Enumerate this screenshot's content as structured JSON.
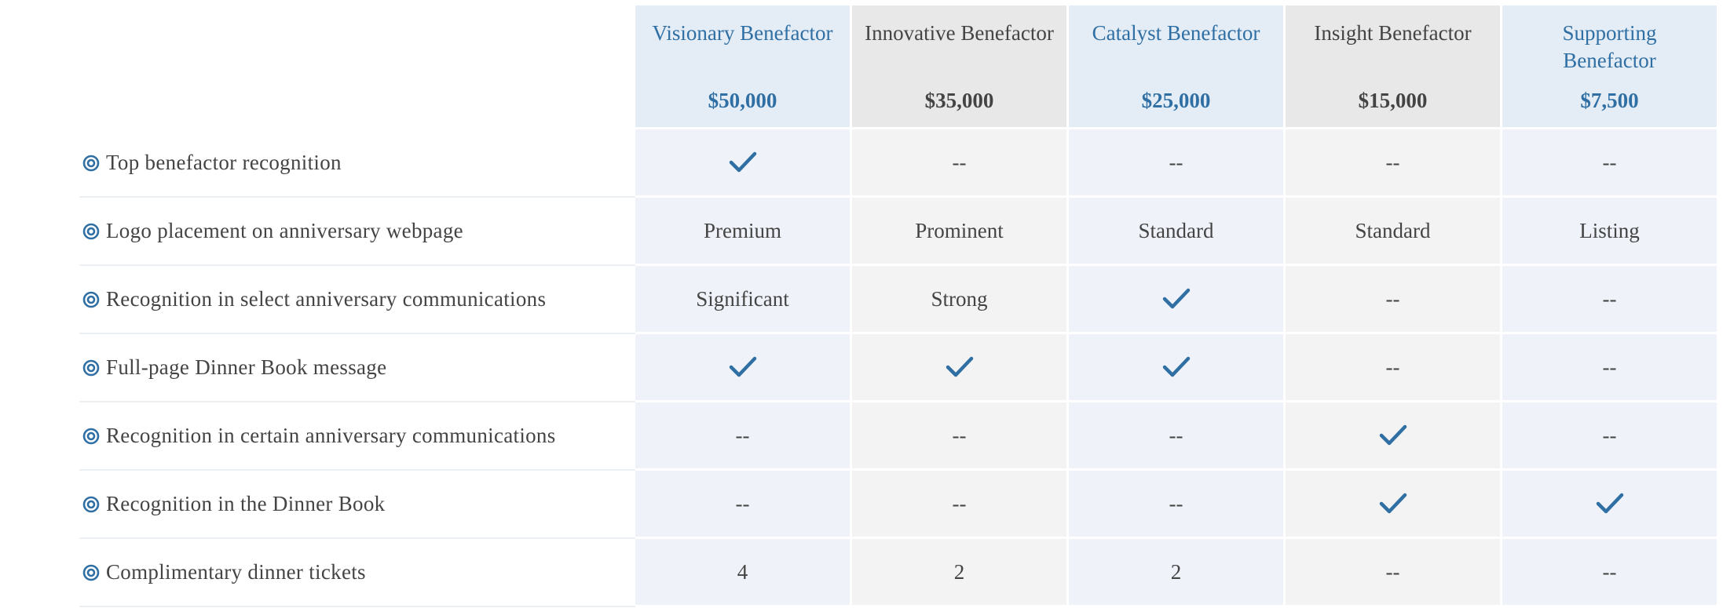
{
  "tiers": [
    {
      "name": "Visionary Benefactor",
      "price": "$50,000"
    },
    {
      "name": "Innovative Benefactor",
      "price": "$35,000"
    },
    {
      "name": "Catalyst Benefactor",
      "price": "$25,000"
    },
    {
      "name": "Insight Benefactor",
      "price": "$15,000"
    },
    {
      "name": "Supporting Benefactor",
      "price": "$7,500"
    }
  ],
  "rows": [
    {
      "label": "Top benefactor recognition",
      "cells": [
        true,
        "--",
        "--",
        "--",
        "--"
      ]
    },
    {
      "label": "Logo placement on anniversary webpage",
      "cells": [
        "Premium",
        "Prominent",
        "Standard",
        "Standard",
        "Listing"
      ]
    },
    {
      "label": "Recognition in select anniversary communications",
      "cells": [
        "Significant",
        "Strong",
        true,
        "--",
        "--"
      ]
    },
    {
      "label": "Full-page Dinner Book message",
      "cells": [
        true,
        true,
        true,
        "--",
        "--"
      ]
    },
    {
      "label": "Recognition in certain anniversary communications",
      "cells": [
        "--",
        "--",
        "--",
        true,
        "--"
      ]
    },
    {
      "label": "Recognition in the Dinner Book",
      "cells": [
        "--",
        "--",
        "--",
        true,
        true
      ]
    },
    {
      "label": "Complimentary dinner tickets",
      "cells": [
        4,
        2,
        2,
        "--",
        "--"
      ]
    }
  ]
}
